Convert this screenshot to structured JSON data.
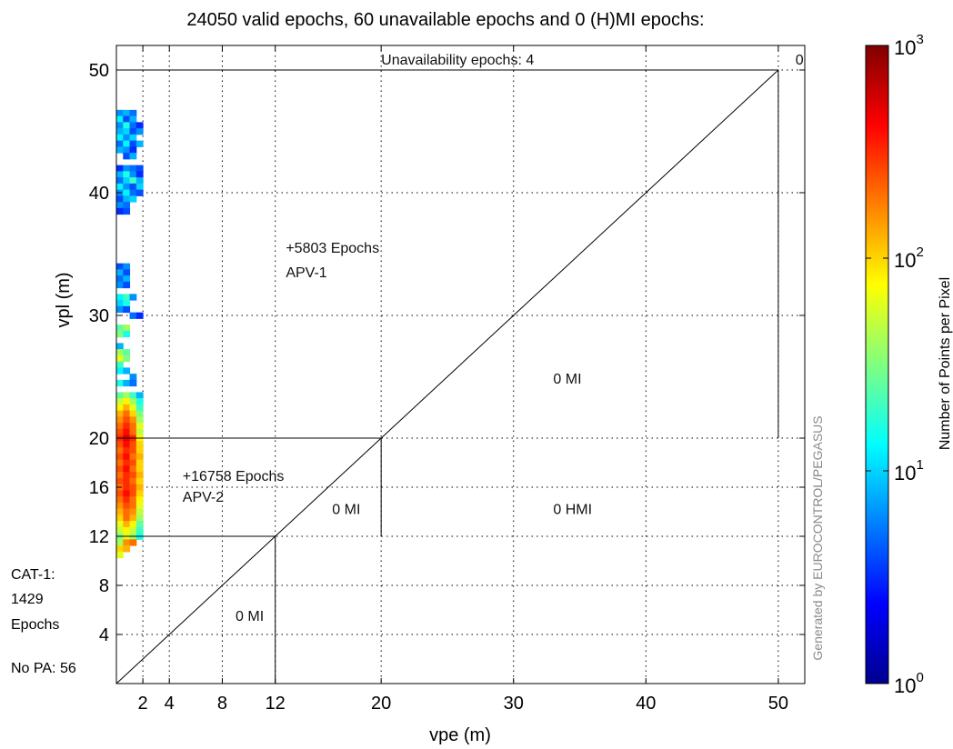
{
  "chart_data": {
    "type": "heatmap",
    "title": "24050 valid epochs, 60 unavailable epochs and 0 (H)MI epochs:",
    "xlabel": "vpe (m)",
    "ylabel": "vpl (m)",
    "xlim": [
      0,
      52
    ],
    "ylim": [
      0,
      52
    ],
    "xticks": [
      2,
      4,
      8,
      12,
      20,
      30,
      40,
      50
    ],
    "yticks": [
      4,
      8,
      12,
      16,
      20,
      30,
      40,
      50
    ],
    "grid": true,
    "watermark": "Generated by EUROCONTROL/PEGASUS",
    "colorbar": {
      "label": "Number of Points per Pixel",
      "scale": "log",
      "range": [
        1,
        1000
      ],
      "tick_labels": [
        {
          "base": "10",
          "exp": "0",
          "value": 1
        },
        {
          "base": "10",
          "exp": "1",
          "value": 10
        },
        {
          "base": "10",
          "exp": "2",
          "value": 100
        },
        {
          "base": "10",
          "exp": "3",
          "value": 1000
        }
      ]
    },
    "regions": [
      {
        "name": "APV-1",
        "x": [
          0,
          50
        ],
        "y": [
          20,
          50
        ]
      },
      {
        "name": "APV-2",
        "x": [
          0,
          20
        ],
        "y": [
          12,
          20
        ]
      },
      {
        "name": "CAT-1",
        "x": [
          0,
          12
        ],
        "y": [
          0,
          12
        ]
      }
    ],
    "annotations": [
      {
        "text": "Unavailability epochs: 4",
        "x": 20,
        "y": 50.8
      },
      {
        "text": "0",
        "x": 51.3,
        "y": 50.8
      },
      {
        "text": "+5803 Epochs",
        "x": 12.8,
        "y": 35.5
      },
      {
        "text": "APV-1",
        "x": 12.8,
        "y": 33.5
      },
      {
        "text": "0 MI",
        "x": 33,
        "y": 24.8
      },
      {
        "text": "+16758 Epochs",
        "x": 5,
        "y": 16.9
      },
      {
        "text": "APV-2",
        "x": 5,
        "y": 15.2
      },
      {
        "text": "0 MI",
        "x": 16.3,
        "y": 14.2
      },
      {
        "text": "0 HMI",
        "x": 33,
        "y": 14.2
      },
      {
        "text": "0 MI",
        "x": 9,
        "y": 5.5
      }
    ],
    "side_labels": {
      "cat1": [
        "CAT-1:",
        "1429",
        "Epochs"
      ],
      "no_pa": "No PA: 56"
    },
    "cells": [
      [
        0.5,
        46.5,
        0.8
      ],
      [
        1,
        46.5,
        0.9
      ],
      [
        1.5,
        46.5,
        0.7
      ],
      [
        0.5,
        46,
        1.1
      ],
      [
        1,
        46,
        0.6
      ],
      [
        1.5,
        46,
        0.9
      ],
      [
        0.5,
        45.5,
        0.8
      ],
      [
        1,
        45.5,
        1.2
      ],
      [
        1.5,
        45.5,
        0.7
      ],
      [
        2,
        45.5,
        0.5
      ],
      [
        0.5,
        45,
        0.9
      ],
      [
        1,
        45,
        1.0
      ],
      [
        1.5,
        45,
        0.6
      ],
      [
        2,
        45,
        0.8
      ],
      [
        0.5,
        44.5,
        1.1
      ],
      [
        1,
        44.5,
        0.8
      ],
      [
        1.5,
        44.5,
        1.0
      ],
      [
        0.5,
        44,
        0.7
      ],
      [
        1,
        44,
        1.1
      ],
      [
        1.5,
        44,
        0.6
      ],
      [
        2,
        44,
        0.9
      ],
      [
        0.5,
        43.5,
        0.9
      ],
      [
        1,
        43.5,
        0.8
      ],
      [
        1.5,
        43.5,
        0.5
      ],
      [
        1,
        43,
        0.6
      ],
      [
        1.5,
        43,
        0.9
      ],
      [
        0.5,
        42,
        0.5
      ],
      [
        1,
        42,
        0.8
      ],
      [
        1.5,
        42,
        0.7
      ],
      [
        2,
        42,
        0.6
      ],
      [
        0.5,
        41.5,
        0.9
      ],
      [
        1,
        41.5,
        1.2
      ],
      [
        1.5,
        41.5,
        0.8
      ],
      [
        2,
        41.5,
        0.5
      ],
      [
        0.5,
        41,
        0.7
      ],
      [
        1,
        41,
        1.0
      ],
      [
        1.5,
        41,
        1.3
      ],
      [
        2,
        41,
        0.9
      ],
      [
        0.5,
        40.5,
        1.1
      ],
      [
        1,
        40.5,
        0.8
      ],
      [
        1.5,
        40.5,
        0.6
      ],
      [
        2,
        40.5,
        1.0
      ],
      [
        0.5,
        40,
        0.8
      ],
      [
        1,
        40,
        1.1
      ],
      [
        1.5,
        40,
        0.7
      ],
      [
        2,
        40,
        0.6
      ],
      [
        0.5,
        39.5,
        0.6
      ],
      [
        1,
        39.5,
        0.9
      ],
      [
        1.5,
        39.5,
        1.0
      ],
      [
        0.5,
        39,
        0.8
      ],
      [
        1,
        39,
        0.7
      ],
      [
        0.5,
        38.5,
        0.5
      ],
      [
        1,
        38.5,
        0.6
      ],
      [
        0.5,
        34,
        0.6
      ],
      [
        1,
        34,
        0.8
      ],
      [
        0.5,
        33.5,
        0.9
      ],
      [
        1,
        33.5,
        0.6
      ],
      [
        0.5,
        33,
        0.7
      ],
      [
        1,
        33,
        0.9
      ],
      [
        0.5,
        32.5,
        0.8
      ],
      [
        1,
        32.5,
        0.6
      ],
      [
        0.5,
        31.5,
        1.1
      ],
      [
        1,
        31.5,
        1.3
      ],
      [
        1.5,
        31.5,
        0.8
      ],
      [
        0.5,
        31,
        1.0
      ],
      [
        1,
        31,
        1.2
      ],
      [
        0.5,
        30.5,
        0.8
      ],
      [
        1,
        30.5,
        0.6
      ],
      [
        1.5,
        30,
        0.7
      ],
      [
        2,
        30,
        0.5
      ],
      [
        0.5,
        29,
        1.4
      ],
      [
        1,
        29,
        1.6
      ],
      [
        0.5,
        28.5,
        1.5
      ],
      [
        1,
        28.5,
        1.2
      ],
      [
        0.5,
        27.5,
        0.9
      ],
      [
        0.5,
        27,
        1.6
      ],
      [
        1,
        27,
        1.4
      ],
      [
        0.5,
        26.5,
        1.8
      ],
      [
        1,
        26.5,
        1.5
      ],
      [
        0.5,
        26,
        1.3
      ],
      [
        0.5,
        25.5,
        1.1
      ],
      [
        1,
        25.5,
        0.9
      ],
      [
        1.5,
        25,
        0.8
      ],
      [
        0.5,
        24.5,
        1.2
      ],
      [
        1,
        24.5,
        0.9
      ],
      [
        1.5,
        24.5,
        0.7
      ],
      [
        0.5,
        23.5,
        1.4
      ],
      [
        1,
        23.5,
        1.6
      ],
      [
        1.5,
        23.5,
        1.3
      ],
      [
        2,
        23.5,
        0.9
      ],
      [
        0.5,
        23,
        1.7
      ],
      [
        1,
        23,
        1.9
      ],
      [
        1.5,
        23,
        1.6
      ],
      [
        2,
        23,
        1.2
      ],
      [
        0.5,
        22.5,
        1.9
      ],
      [
        1,
        22.5,
        2.1
      ],
      [
        1.5,
        22.5,
        1.8
      ],
      [
        2,
        22.5,
        1.3
      ],
      [
        0.5,
        22,
        2.1
      ],
      [
        1,
        22,
        2.3
      ],
      [
        1.5,
        22,
        2.0
      ],
      [
        2,
        22,
        1.5
      ],
      [
        0.5,
        21.5,
        2.2
      ],
      [
        1,
        21.5,
        2.4
      ],
      [
        1.5,
        21.5,
        2.2
      ],
      [
        2,
        21.5,
        1.6
      ],
      [
        0.5,
        21,
        2.3
      ],
      [
        1,
        21,
        2.5
      ],
      [
        1.5,
        21,
        2.3
      ],
      [
        2,
        21,
        1.8
      ],
      [
        0.5,
        20.5,
        2.4
      ],
      [
        1,
        20.5,
        2.6
      ],
      [
        1.5,
        20.5,
        2.3
      ],
      [
        2,
        20.5,
        1.7
      ],
      [
        0.5,
        20,
        2.5
      ],
      [
        1,
        20,
        2.7
      ],
      [
        1.5,
        20,
        2.5
      ],
      [
        2,
        20,
        1.9
      ],
      [
        0.5,
        19.5,
        2.4
      ],
      [
        1,
        19.5,
        2.6
      ],
      [
        1.5,
        19.5,
        2.4
      ],
      [
        2,
        19.5,
        2.0
      ],
      [
        0.5,
        19,
        2.3
      ],
      [
        1,
        19,
        2.5
      ],
      [
        1.5,
        19,
        2.4
      ],
      [
        2,
        19,
        2.0
      ],
      [
        0.5,
        18.5,
        2.4
      ],
      [
        1,
        18.5,
        2.6
      ],
      [
        1.5,
        18.5,
        2.3
      ],
      [
        2,
        18.5,
        2.1
      ],
      [
        0.5,
        18,
        2.3
      ],
      [
        1,
        18,
        2.5
      ],
      [
        1.5,
        18,
        2.4
      ],
      [
        2,
        18,
        2.0
      ],
      [
        0.5,
        17.5,
        2.4
      ],
      [
        1,
        17.5,
        2.6
      ],
      [
        1.5,
        17.5,
        2.3
      ],
      [
        2,
        17.5,
        2.0
      ],
      [
        0.5,
        17,
        2.3
      ],
      [
        1,
        17,
        2.5
      ],
      [
        1.5,
        17,
        2.4
      ],
      [
        2,
        17,
        2.1
      ],
      [
        0.5,
        16.5,
        2.4
      ],
      [
        1,
        16.5,
        2.5
      ],
      [
        1.5,
        16.5,
        2.3
      ],
      [
        2,
        16.5,
        2.0
      ],
      [
        0.5,
        16,
        2.3
      ],
      [
        1,
        16,
        2.5
      ],
      [
        1.5,
        16,
        2.4
      ],
      [
        2,
        16,
        2.1
      ],
      [
        0.5,
        15.5,
        2.4
      ],
      [
        1,
        15.5,
        2.6
      ],
      [
        1.5,
        15.5,
        2.4
      ],
      [
        2,
        15.5,
        2.0
      ],
      [
        0.5,
        15,
        2.3
      ],
      [
        1,
        15,
        2.5
      ],
      [
        1.5,
        15,
        2.3
      ],
      [
        2,
        15,
        1.9
      ],
      [
        0.5,
        14.5,
        2.2
      ],
      [
        1,
        14.5,
        2.4
      ],
      [
        1.5,
        14.5,
        2.3
      ],
      [
        2,
        14.5,
        1.8
      ],
      [
        0.5,
        14,
        2.1
      ],
      [
        1,
        14,
        2.3
      ],
      [
        1.5,
        14,
        2.2
      ],
      [
        2,
        14,
        1.7
      ],
      [
        0.5,
        13.5,
        2.0
      ],
      [
        1,
        13.5,
        2.3
      ],
      [
        1.5,
        13.5,
        2.1
      ],
      [
        2,
        13.5,
        1.6
      ],
      [
        0.5,
        13,
        1.8
      ],
      [
        1,
        13,
        2.1
      ],
      [
        1.5,
        13,
        1.9
      ],
      [
        2,
        13,
        1.4
      ],
      [
        0.5,
        12.5,
        1.7
      ],
      [
        1,
        12.5,
        1.9
      ],
      [
        1.5,
        12.5,
        1.7
      ],
      [
        2,
        12.5,
        1.3
      ],
      [
        0.5,
        12,
        1.5
      ],
      [
        1,
        12,
        1.8
      ],
      [
        1.5,
        12,
        1.6
      ],
      [
        2,
        12,
        1.2
      ],
      [
        0.5,
        11.5,
        1.6
      ],
      [
        1,
        11.5,
        2.2
      ],
      [
        1.5,
        11.5,
        2.3
      ],
      [
        0.5,
        11,
        2.0
      ],
      [
        1,
        11,
        2.1
      ],
      [
        0.5,
        10.5,
        1.8
      ]
    ]
  }
}
